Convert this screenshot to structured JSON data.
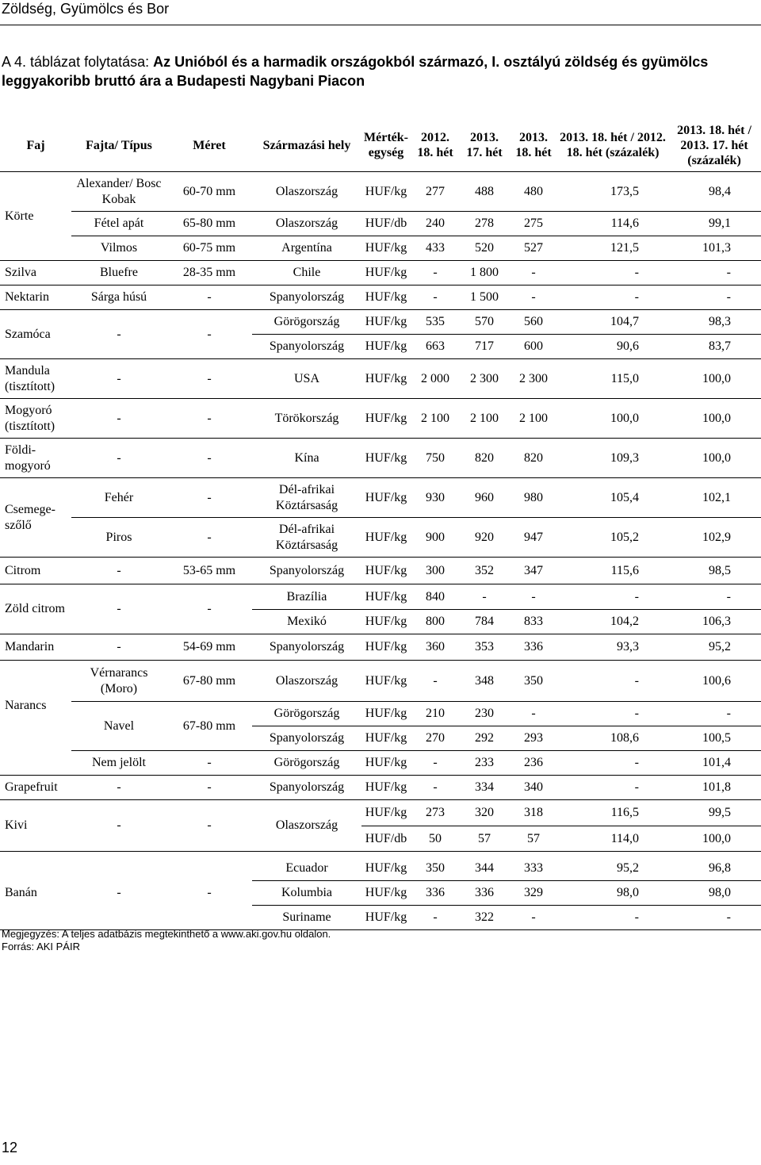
{
  "header": {
    "text": "Zöldség, Gyümölcs és Bor"
  },
  "title": {
    "prefix": "A 4. táblázat folytatása: ",
    "main": "Az Unióból és a harmadik országokból származó, I. osztályú zöldség és gyümölcs leggyakoribb bruttó ára a Budapesti Nagybani Piacon"
  },
  "table": {
    "headers": [
      "Faj",
      "Fajta/ Típus",
      "Méret",
      "Származási hely",
      "Mérték-egység",
      "2012. 18. hét",
      "2013. 17. hét",
      "2013. 18. hét",
      "2013. 18. hét / 2012. 18. hét (százalék)",
      "2013. 18. hét / 2013. 17. hét (százalék)"
    ],
    "rows": [
      [
        "Körte",
        "Alexander/ Bosc Kobak",
        "60-70 mm",
        "Olaszország",
        "HUF/kg",
        "277",
        "488",
        "480",
        "173,5",
        "98,4"
      ],
      [
        "",
        "Fétel apát",
        "65-80 mm",
        "Olaszország",
        "HUF/db",
        "240",
        "278",
        "275",
        "114,6",
        "99,1"
      ],
      [
        "",
        "Vilmos",
        "60-75 mm",
        "Argentína",
        "HUF/kg",
        "433",
        "520",
        "527",
        "121,5",
        "101,3"
      ],
      [
        "Szilva",
        "Bluefre",
        "28-35 mm",
        "Chile",
        "HUF/kg",
        "-",
        "1 800",
        "-",
        "-",
        "-"
      ],
      [
        "Nektarin",
        "Sárga húsú",
        "-",
        "Spanyolország",
        "HUF/kg",
        "-",
        "1 500",
        "-",
        "-",
        "-"
      ],
      [
        "Szamóca",
        "-",
        "-",
        "Görögország",
        "HUF/kg",
        "535",
        "570",
        "560",
        "104,7",
        "98,3"
      ],
      [
        "",
        "",
        "",
        "Spanyolország",
        "HUF/kg",
        "663",
        "717",
        "600",
        "90,6",
        "83,7"
      ],
      [
        "Mandula (tisztított)",
        "-",
        "-",
        "USA",
        "HUF/kg",
        "2 000",
        "2 300",
        "2 300",
        "115,0",
        "100,0"
      ],
      [
        "Mogyoró (tisztított)",
        "-",
        "-",
        "Törökország",
        "HUF/kg",
        "2 100",
        "2 100",
        "2 100",
        "100,0",
        "100,0"
      ],
      [
        "Földi-mogyoró",
        "-",
        "-",
        "Kína",
        "HUF/kg",
        "750",
        "820",
        "820",
        "109,3",
        "100,0"
      ],
      [
        "Csemege-szőlő",
        "Fehér",
        "-",
        "Dél-afrikai Köztársaság",
        "HUF/kg",
        "930",
        "960",
        "980",
        "105,4",
        "102,1"
      ],
      [
        "",
        "Piros",
        "-",
        "Dél-afrikai Köztársaság",
        "HUF/kg",
        "900",
        "920",
        "947",
        "105,2",
        "102,9"
      ],
      [
        "Citrom",
        "-",
        "53-65 mm",
        "Spanyolország",
        "HUF/kg",
        "300",
        "352",
        "347",
        "115,6",
        "98,5"
      ],
      [
        "Zöld citrom",
        "-",
        "-",
        "Brazília",
        "HUF/kg",
        "840",
        "-",
        "-",
        "-",
        "-"
      ],
      [
        "",
        "",
        "",
        "Mexikó",
        "HUF/kg",
        "800",
        "784",
        "833",
        "104,2",
        "106,3"
      ],
      [
        "Mandarin",
        "-",
        "54-69 mm",
        "Spanyolország",
        "HUF/kg",
        "360",
        "353",
        "336",
        "93,3",
        "95,2"
      ],
      [
        "Narancs",
        "Vérnarancs (Moro)",
        "67-80 mm",
        "Olaszország",
        "HUF/kg",
        "-",
        "348",
        "350",
        "-",
        "100,6"
      ],
      [
        "",
        "Navel",
        "67-80 mm",
        "Görögország",
        "HUF/kg",
        "210",
        "230",
        "-",
        "-",
        "-"
      ],
      [
        "",
        "",
        "",
        "Spanyolország",
        "HUF/kg",
        "270",
        "292",
        "293",
        "108,6",
        "100,5"
      ],
      [
        "",
        "Nem jelölt",
        "-",
        "Görögország",
        "HUF/kg",
        "-",
        "233",
        "236",
        "-",
        "101,4"
      ],
      [
        "Grapefruit",
        "-",
        "-",
        "Spanyolország",
        "HUF/kg",
        "-",
        "334",
        "340",
        "-",
        "101,8"
      ],
      [
        "Kivi",
        "-",
        "-",
        "Olaszország",
        "HUF/kg",
        "273",
        "320",
        "318",
        "116,5",
        "99,5"
      ],
      [
        "",
        "",
        "",
        "",
        "HUF/db",
        "50",
        "57",
        "57",
        "114,0",
        "100,0"
      ],
      [
        "Banán",
        "-",
        "-",
        "Ecuador",
        "HUF/kg",
        "350",
        "344",
        "333",
        "95,2",
        "96,8"
      ],
      [
        "",
        "",
        "",
        "Kolumbia",
        "HUF/kg",
        "336",
        "336",
        "329",
        "98,0",
        "98,0"
      ],
      [
        "",
        "",
        "",
        "Suriname",
        "HUF/kg",
        "-",
        "322",
        "-",
        "-",
        "-"
      ]
    ]
  },
  "notes": {
    "note": "Megjegyzés: A teljes adatbázis megtekinthető a www.aki.gov.hu oldalon.",
    "source": "Forrás: AKI PÁIR"
  },
  "page_number": "12"
}
